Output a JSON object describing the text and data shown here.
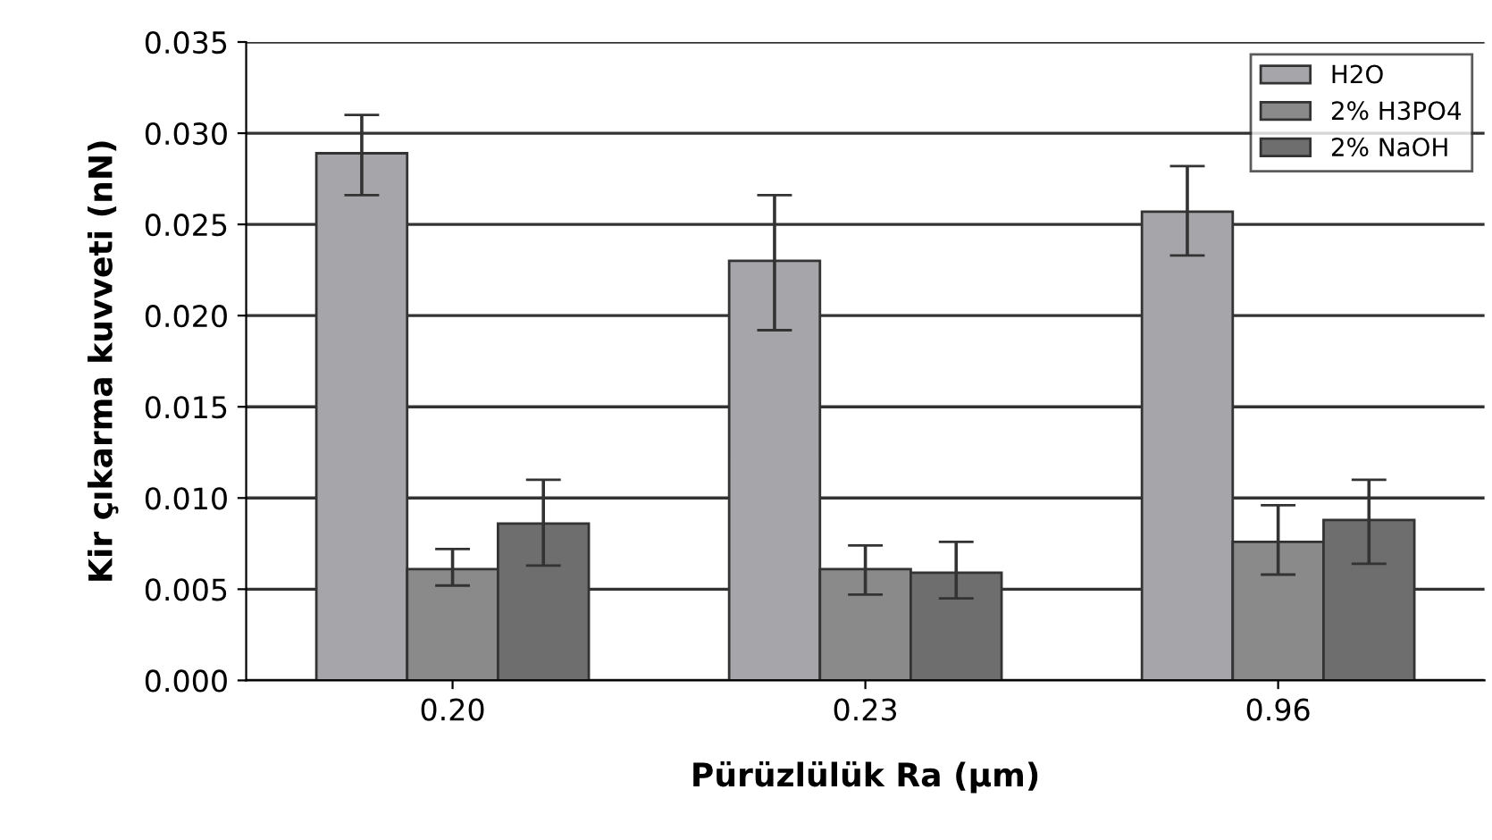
{
  "chart_data": {
    "type": "bar",
    "xlabel": "Pürüzlülük Ra (µm)",
    "ylabel": "Kir çıkarma kuvveti (nN)",
    "categories": [
      "0.20",
      "0.23",
      "0.96"
    ],
    "series": [
      {
        "name": "H2O",
        "color": "#a6a6aa",
        "values": [
          0.0289,
          0.023,
          0.0257
        ],
        "errors": [
          [
            0.0266,
            0.031
          ],
          [
            0.0192,
            0.0266
          ],
          [
            0.0233,
            0.0282
          ]
        ]
      },
      {
        "name": "2% H3PO4",
        "color": "#8a8a8a",
        "values": [
          0.0061,
          0.0061,
          0.0076
        ],
        "errors": [
          [
            0.0052,
            0.0072
          ],
          [
            0.0047,
            0.0074
          ],
          [
            0.0058,
            0.0096
          ]
        ]
      },
      {
        "name": "2% NaOH",
        "color": "#6e6e6e",
        "values": [
          0.0086,
          0.0059,
          0.0088
        ],
        "errors": [
          [
            0.0063,
            0.011
          ],
          [
            0.0045,
            0.0076
          ],
          [
            0.0064,
            0.011
          ]
        ]
      }
    ],
    "ylim": [
      0,
      0.035
    ],
    "yticks": [
      {
        "value": 0,
        "label": "0.000"
      },
      {
        "value": 0.005,
        "label": "0.005"
      },
      {
        "value": 0.01,
        "label": "0.010"
      },
      {
        "value": 0.015,
        "label": "0.015"
      },
      {
        "value": 0.02,
        "label": "0.020"
      },
      {
        "value": 0.025,
        "label": "0.025"
      },
      {
        "value": 0.03,
        "label": "0.030"
      },
      {
        "value": 0.035,
        "label": "0.035"
      }
    ],
    "grid": "y",
    "legend": "top right"
  }
}
